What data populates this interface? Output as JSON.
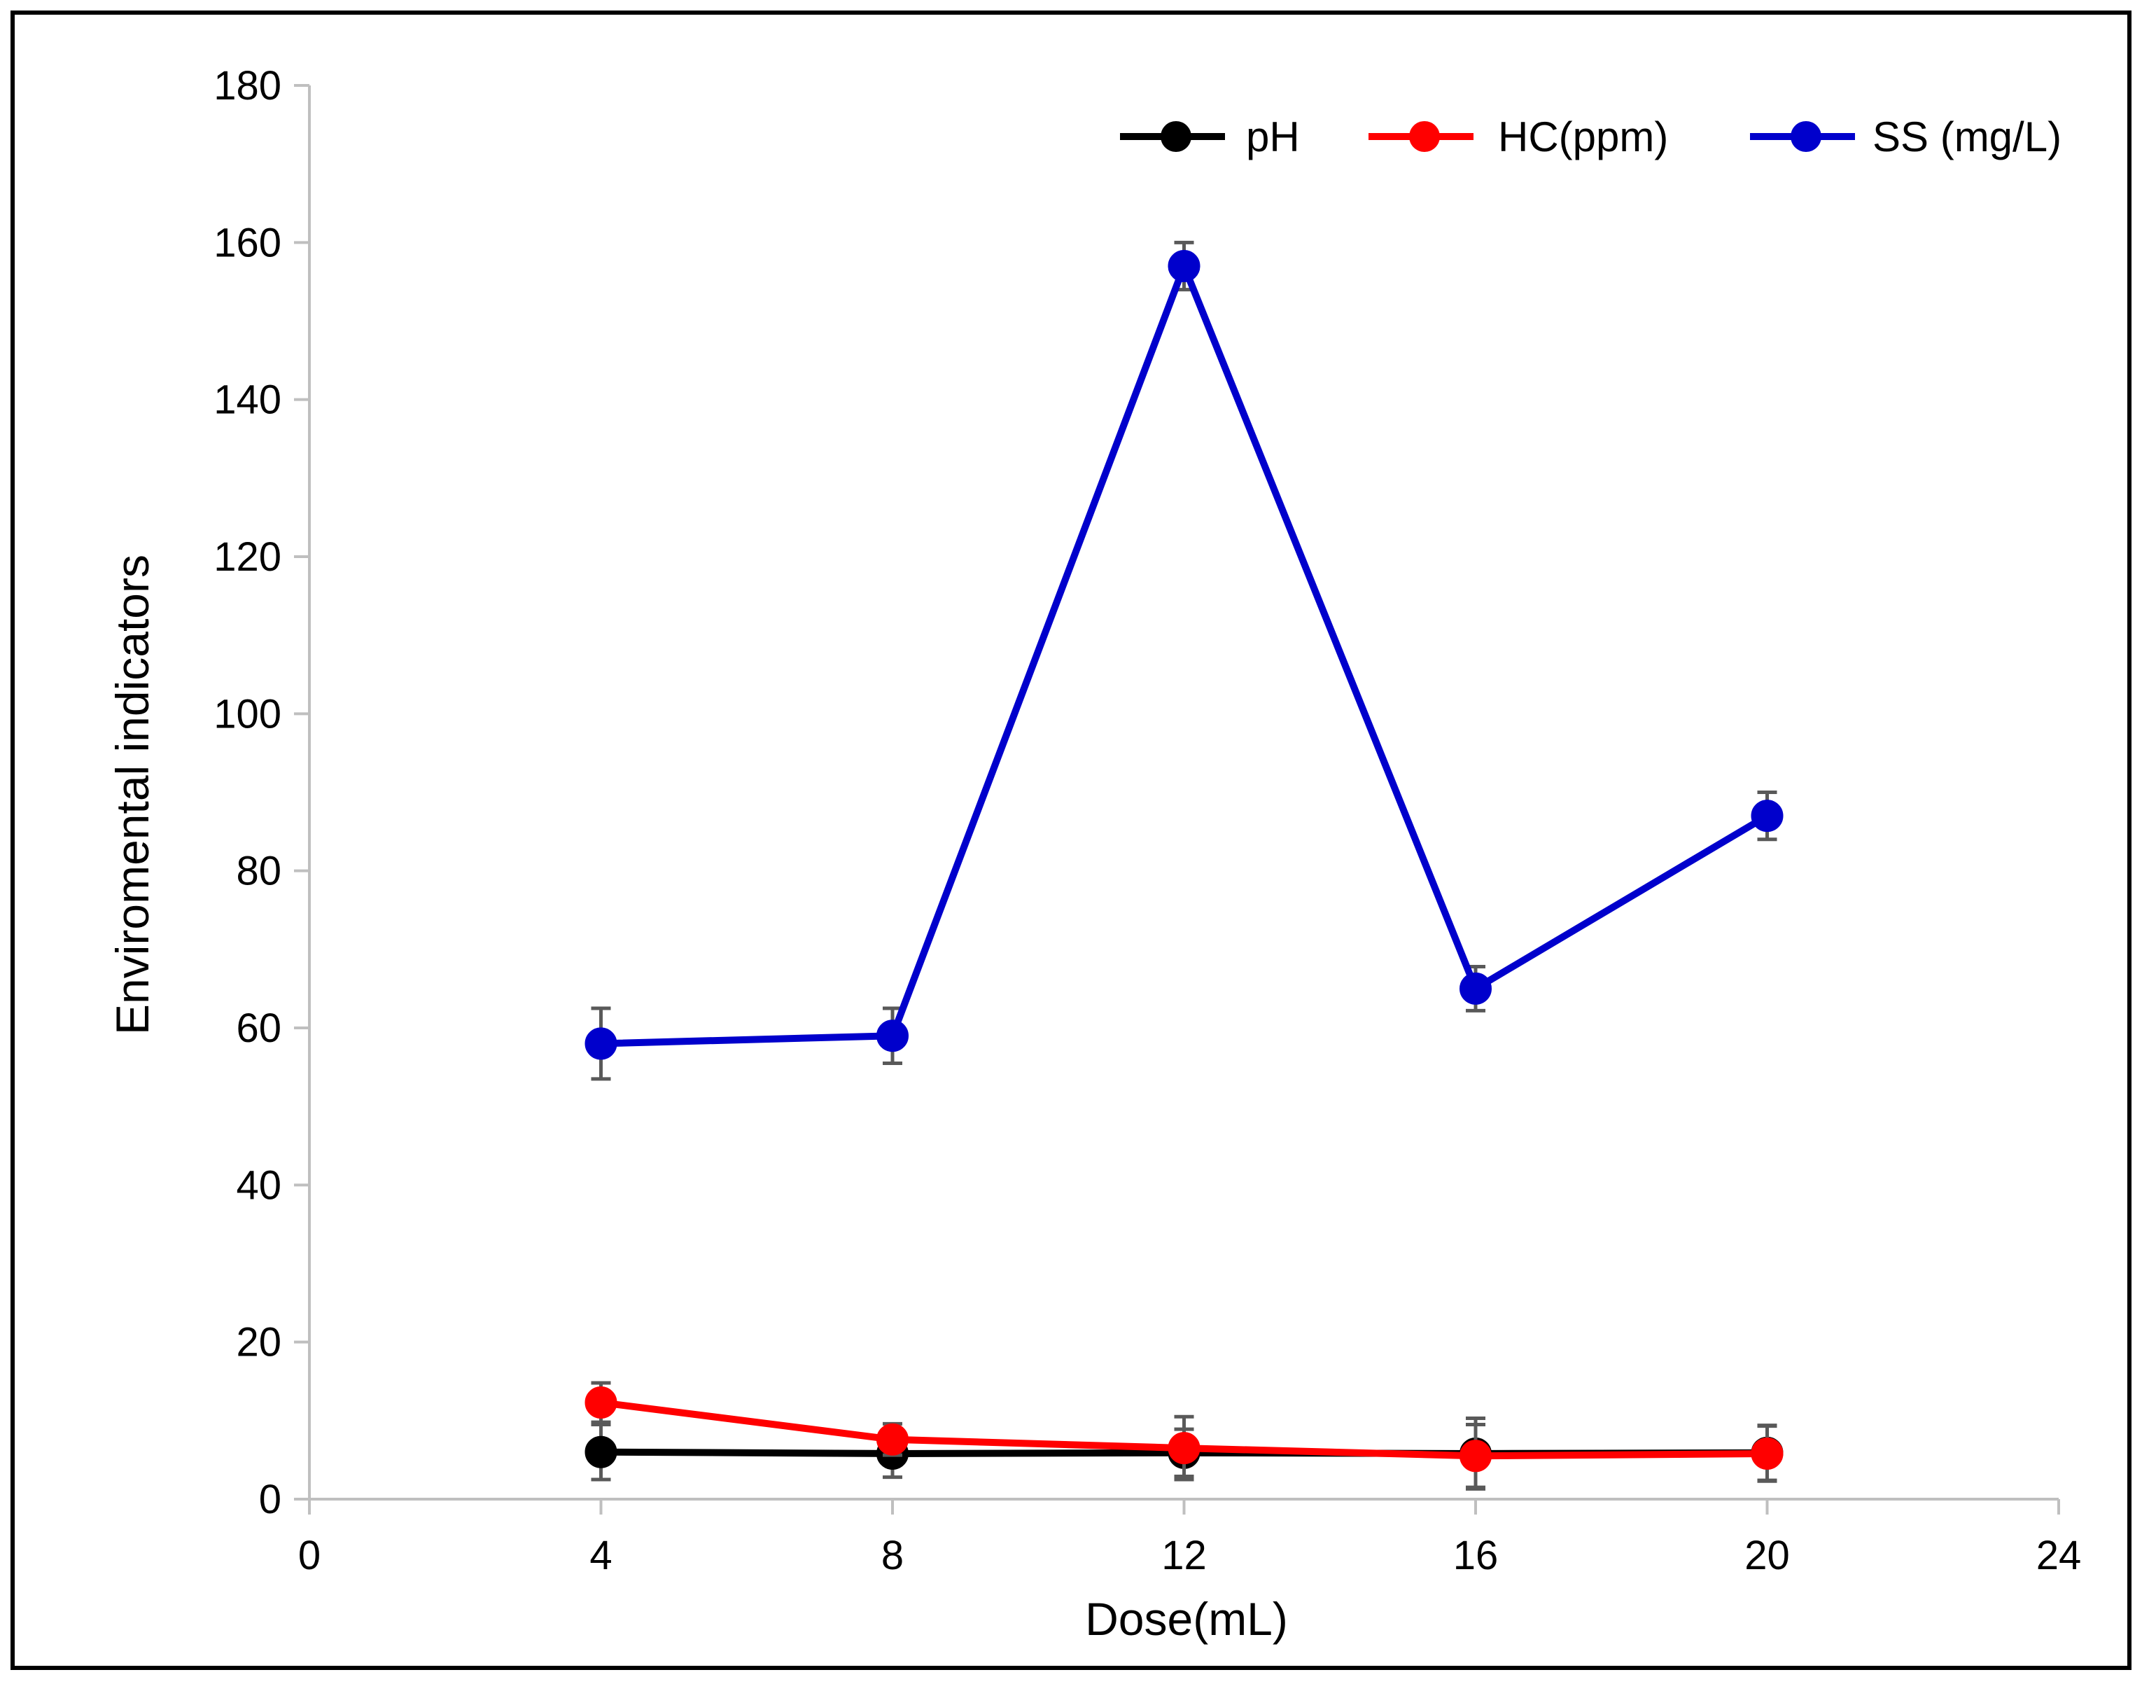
{
  "chart_data": {
    "type": "line",
    "title": "",
    "xlabel": "Dose(mL)",
    "ylabel": "Enviromental indicators",
    "xlim": [
      0,
      24
    ],
    "ylim": [
      0,
      180
    ],
    "x_ticks": [
      "0",
      "4",
      "8",
      "12",
      "16",
      "20",
      "24"
    ],
    "y_ticks": [
      "0",
      "20",
      "40",
      "60",
      "80",
      "100",
      "120",
      "140",
      "160",
      "180"
    ],
    "grid": false,
    "legend_position": "top-right",
    "error_bars": true,
    "x": [
      4,
      8,
      12,
      16,
      20
    ],
    "series": [
      {
        "name": "pH",
        "color": "#000000",
        "values": [
          6.0,
          5.8,
          5.9,
          5.8,
          5.9
        ],
        "errors": [
          3.5,
          3.0,
          3.0,
          4.5,
          3.5
        ]
      },
      {
        "name": "HC(ppm)",
        "color": "#ff0000",
        "values": [
          12.3,
          7.6,
          6.5,
          5.5,
          5.8
        ],
        "errors": [
          2.5,
          2.0,
          4.0,
          4.0,
          3.5
        ]
      },
      {
        "name": "SS (mg/L)",
        "color": "#0000cc",
        "values": [
          58,
          59,
          157,
          65,
          87
        ],
        "errors": [
          4.5,
          3.5,
          3.0,
          2.8,
          3.0
        ]
      }
    ],
    "colors": {
      "axis": "#bfbfbf",
      "error_bar": "#595959",
      "border": "#000000"
    }
  }
}
